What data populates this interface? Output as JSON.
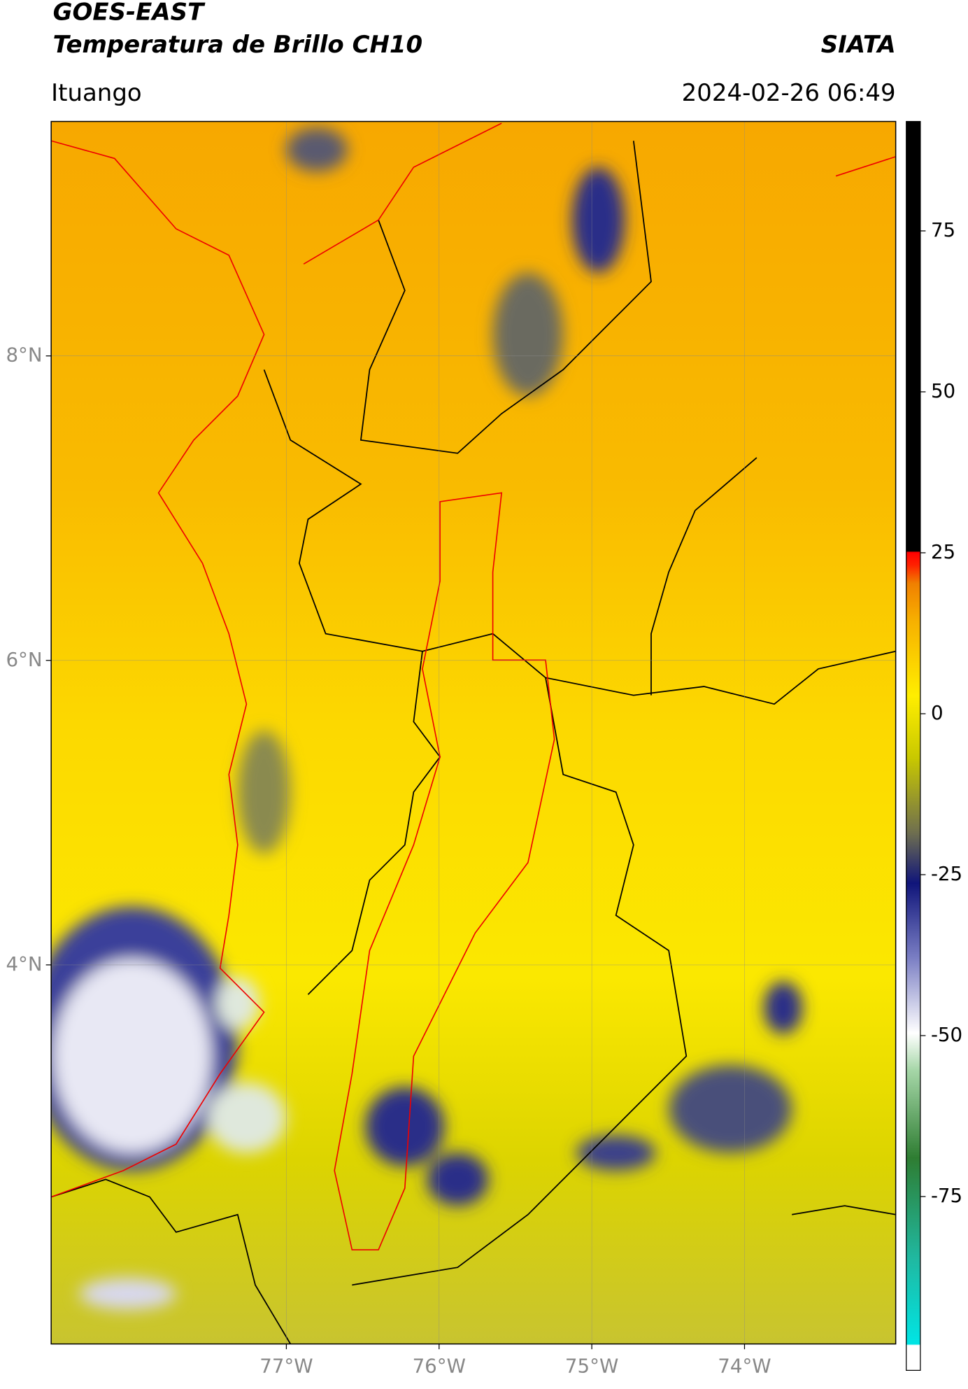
{
  "header": {
    "title": "GOES-EAST",
    "subtitle": "Temperatura de Brillo CH10",
    "source": "SIATA",
    "location": "Ituango",
    "datetime": "2024-02-26 06:49"
  },
  "map": {
    "xlim": [
      -78.54,
      -73.01
    ],
    "ylim": [
      1.51,
      9.54
    ],
    "xticks": [
      {
        "value": -77,
        "label": "77°W"
      },
      {
        "value": -76,
        "label": "76°W"
      },
      {
        "value": -75,
        "label": "75°W"
      },
      {
        "value": -74,
        "label": "74°W"
      }
    ],
    "yticks": [
      {
        "value": 8,
        "label": "8°N"
      },
      {
        "value": 6,
        "label": "6°N"
      },
      {
        "value": 4,
        "label": "4°N"
      }
    ],
    "grid": true
  },
  "colorbar": {
    "lim": [
      -102,
      92
    ],
    "ticks": [
      75,
      50,
      25,
      0,
      -25,
      -50,
      -75
    ]
  }
}
